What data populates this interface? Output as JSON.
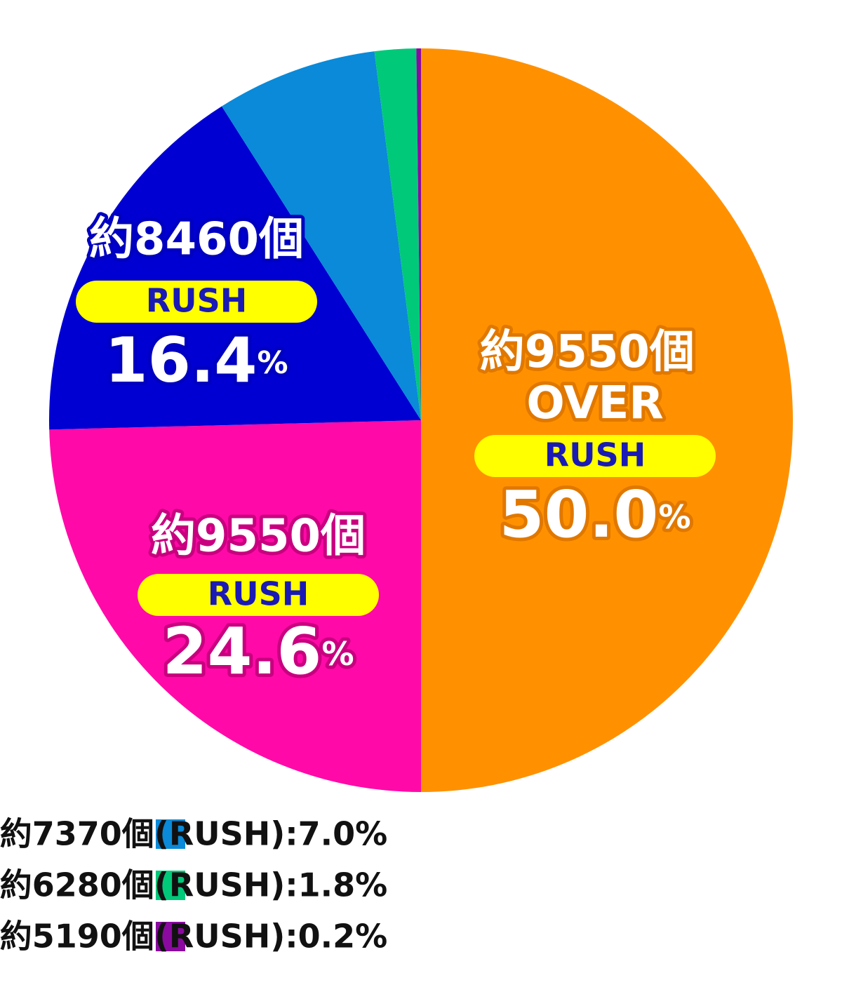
{
  "chart_data": {
    "type": "pie",
    "values": [
      50.0,
      24.6,
      16.4,
      7.0,
      1.8,
      0.2
    ],
    "colors": [
      "#ff9100",
      "#ff0aa8",
      "#0000d2",
      "#0a8ad8",
      "#00c97a",
      "#8a0aa0"
    ],
    "slice_labels": [
      {
        "name": "約9550個 OVER",
        "mode": "RUSH",
        "value_label": "50.0%"
      },
      {
        "name": "約9550個",
        "mode": "RUSH",
        "value_label": "24.6%"
      },
      {
        "name": "約8460個",
        "mode": "RUSH",
        "value_label": "16.4%"
      }
    ],
    "legend": [
      "約7370個(RUSH):7.0%",
      "約6280個(RUSH):1.8%",
      "約5190個(RUSH):0.2%"
    ]
  }
}
